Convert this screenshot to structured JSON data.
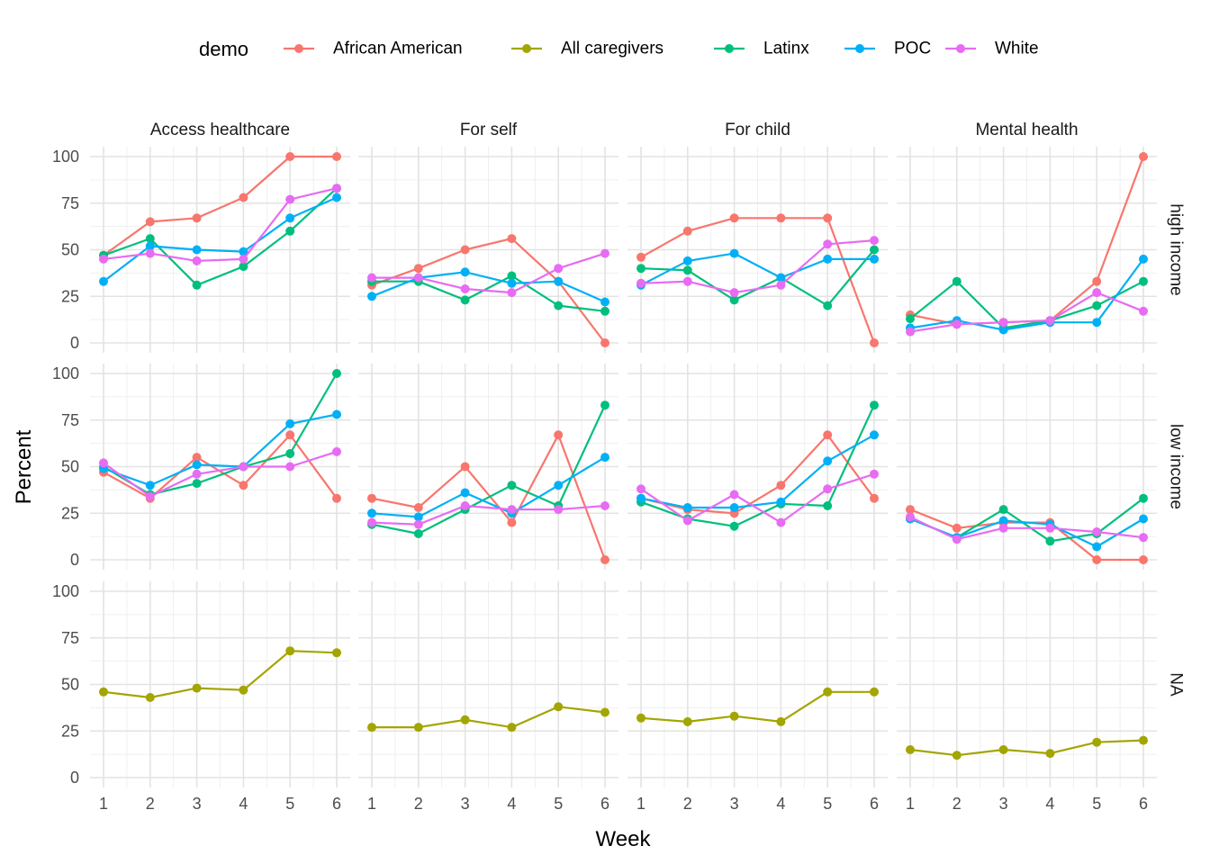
{
  "chart_data": {
    "type": "line",
    "xlabel": "Week",
    "ylabel": "Percent",
    "x": [
      1,
      2,
      3,
      4,
      5,
      6
    ],
    "ylim": [
      0,
      100
    ],
    "yticks": [
      0,
      25,
      50,
      75,
      100
    ],
    "grid": true,
    "legend": {
      "title": "demo",
      "placement": "top",
      "entries": [
        {
          "name": "African American",
          "color": "#F8766D"
        },
        {
          "name": "All caregivers",
          "color": "#A3A500"
        },
        {
          "name": "Latinx",
          "color": "#00BF7D"
        },
        {
          "name": "POC",
          "color": "#00B0F6"
        },
        {
          "name": "White",
          "color": "#E76BF3"
        }
      ]
    },
    "columns": [
      "Access healthcare",
      "For self",
      "For child",
      "Mental health"
    ],
    "rows": [
      "high income",
      "low income",
      "NA"
    ],
    "panels": [
      {
        "row": 0,
        "col": 0,
        "series": [
          {
            "name": "African American",
            "values": [
              47,
              65,
              67,
              78,
              100,
              100
            ]
          },
          {
            "name": "Latinx",
            "values": [
              47,
              56,
              31,
              41,
              60,
              83
            ]
          },
          {
            "name": "POC",
            "values": [
              33,
              52,
              50,
              49,
              67,
              78
            ]
          },
          {
            "name": "White",
            "values": [
              45,
              48,
              44,
              45,
              77,
              83
            ]
          }
        ]
      },
      {
        "row": 0,
        "col": 1,
        "series": [
          {
            "name": "African American",
            "values": [
              31,
              40,
              50,
              56,
              33,
              0
            ]
          },
          {
            "name": "Latinx",
            "values": [
              33,
              33,
              23,
              36,
              20,
              17
            ]
          },
          {
            "name": "POC",
            "values": [
              25,
              35,
              38,
              32,
              33,
              22
            ]
          },
          {
            "name": "White",
            "values": [
              35,
              35,
              29,
              27,
              40,
              48
            ]
          }
        ]
      },
      {
        "row": 0,
        "col": 2,
        "series": [
          {
            "name": "African American",
            "values": [
              46,
              60,
              67,
              67,
              67,
              0
            ]
          },
          {
            "name": "Latinx",
            "values": [
              40,
              39,
              23,
              35,
              20,
              50
            ]
          },
          {
            "name": "POC",
            "values": [
              31,
              44,
              48,
              35,
              45,
              45
            ]
          },
          {
            "name": "White",
            "values": [
              32,
              33,
              27,
              31,
              53,
              55
            ]
          }
        ]
      },
      {
        "row": 0,
        "col": 3,
        "series": [
          {
            "name": "African American",
            "values": [
              15,
              10,
              11,
              12,
              33,
              100
            ]
          },
          {
            "name": "Latinx",
            "values": [
              13,
              33,
              8,
              12,
              20,
              33
            ]
          },
          {
            "name": "POC",
            "values": [
              8,
              12,
              7,
              11,
              11,
              45
            ]
          },
          {
            "name": "White",
            "values": [
              6,
              10,
              11,
              12,
              27,
              17
            ]
          }
        ]
      },
      {
        "row": 1,
        "col": 0,
        "series": [
          {
            "name": "African American",
            "values": [
              47,
              33,
              55,
              40,
              67,
              33
            ]
          },
          {
            "name": "Latinx",
            "values": [
              50,
              35,
              41,
              50,
              57,
              100
            ]
          },
          {
            "name": "POC",
            "values": [
              49,
              40,
              51,
              50,
              73,
              78
            ]
          },
          {
            "name": "White",
            "values": [
              52,
              34,
              46,
              50,
              50,
              58
            ]
          }
        ]
      },
      {
        "row": 1,
        "col": 1,
        "series": [
          {
            "name": "African American",
            "values": [
              33,
              28,
              50,
              20,
              67,
              0
            ]
          },
          {
            "name": "Latinx",
            "values": [
              19,
              14,
              27,
              40,
              29,
              83
            ]
          },
          {
            "name": "POC",
            "values": [
              25,
              23,
              36,
              25,
              40,
              55
            ]
          },
          {
            "name": "White",
            "values": [
              20,
              19,
              29,
              27,
              27,
              29
            ]
          }
        ]
      },
      {
        "row": 1,
        "col": 2,
        "series": [
          {
            "name": "African American",
            "values": [
              33,
              27,
              25,
              40,
              67,
              33
            ]
          },
          {
            "name": "Latinx",
            "values": [
              31,
              22,
              18,
              30,
              29,
              83
            ]
          },
          {
            "name": "POC",
            "values": [
              33,
              28,
              28,
              31,
              53,
              67
            ]
          },
          {
            "name": "White",
            "values": [
              38,
              21,
              35,
              20,
              38,
              46
            ]
          }
        ]
      },
      {
        "row": 1,
        "col": 3,
        "series": [
          {
            "name": "African American",
            "values": [
              27,
              17,
              20,
              20,
              0,
              0
            ]
          },
          {
            "name": "Latinx",
            "values": [
              22,
              12,
              27,
              10,
              14,
              33
            ]
          },
          {
            "name": "POC",
            "values": [
              22,
              12,
              21,
              19,
              7,
              22
            ]
          },
          {
            "name": "White",
            "values": [
              23,
              11,
              17,
              17,
              15,
              12
            ]
          }
        ]
      },
      {
        "row": 2,
        "col": 0,
        "series": [
          {
            "name": "All caregivers",
            "values": [
              46,
              43,
              48,
              47,
              68,
              67
            ]
          }
        ]
      },
      {
        "row": 2,
        "col": 1,
        "series": [
          {
            "name": "All caregivers",
            "values": [
              27,
              27,
              31,
              27,
              38,
              35
            ]
          }
        ]
      },
      {
        "row": 2,
        "col": 2,
        "series": [
          {
            "name": "All caregivers",
            "values": [
              32,
              30,
              33,
              30,
              46,
              46
            ]
          }
        ]
      },
      {
        "row": 2,
        "col": 3,
        "series": [
          {
            "name": "All caregivers",
            "values": [
              15,
              12,
              15,
              13,
              19,
              20
            ]
          }
        ]
      }
    ]
  }
}
